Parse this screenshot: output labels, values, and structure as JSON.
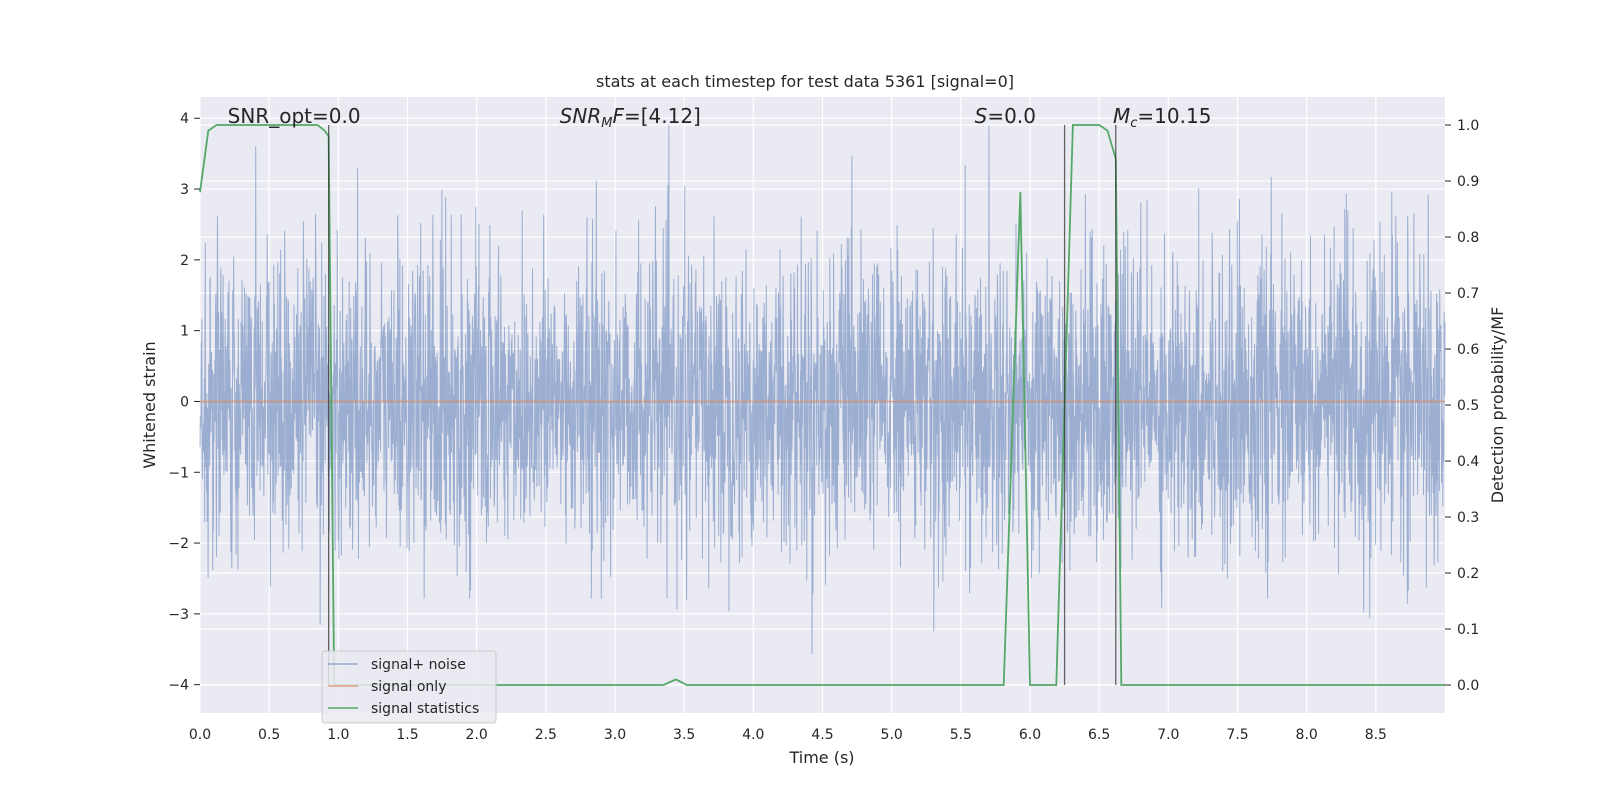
{
  "chart_data": {
    "type": "line",
    "title": "stats at each timestep for test data 5361 [signal=0]",
    "xlabel": "Time (s)",
    "ylabel_left": "Whitened strain",
    "ylabel_right": "Detection probability/MF",
    "xlim": [
      0,
      9.0
    ],
    "ylim_left": [
      -4.4,
      4.3
    ],
    "ylim_right": [
      -0.05,
      1.05
    ],
    "x_ticks": [
      0.0,
      0.5,
      1.0,
      1.5,
      2.0,
      2.5,
      3.0,
      3.5,
      4.0,
      4.5,
      5.0,
      5.5,
      6.0,
      6.5,
      7.0,
      7.5,
      8.0,
      8.5
    ],
    "x_tick_labels": [
      "0.0",
      "0.5",
      "1.0",
      "1.5",
      "2.0",
      "2.5",
      "3.0",
      "3.5",
      "4.0",
      "4.5",
      "5.0",
      "5.5",
      "6.0",
      "6.5",
      "7.0",
      "7.5",
      "8.0",
      "8.5"
    ],
    "y_left_ticks": [
      -4,
      -3,
      -2,
      -1,
      0,
      1,
      2,
      3,
      4
    ],
    "y_left_tick_labels": [
      "−4",
      "−3",
      "−2",
      "−1",
      "0",
      "1",
      "2",
      "3",
      "4"
    ],
    "y_right_ticks": [
      0.0,
      0.1,
      0.2,
      0.3,
      0.4,
      0.5,
      0.6,
      0.7,
      0.8,
      0.9,
      1.0
    ],
    "y_right_tick_labels": [
      "0.0",
      "0.1",
      "0.2",
      "0.3",
      "0.4",
      "0.5",
      "0.6",
      "0.7",
      "0.8",
      "0.9",
      "1.0"
    ],
    "grid": true,
    "legend_position": "lower-left",
    "annotations": [
      {
        "text": "SNR_opt=0.0",
        "x": 0.2
      },
      {
        "text": "SNR_MF=[4.12]",
        "x": 2.6
      },
      {
        "text": "S=0.0",
        "x": 5.6
      },
      {
        "text": "M_c=10.15",
        "x": 6.6
      }
    ],
    "vertical_lines": [
      0.93,
      6.25,
      6.62
    ],
    "series": [
      {
        "name": "signal+ noise",
        "color": "#4c72b0",
        "description": "white noise strain, roughly within ±2.5 with peaks to about ±3.9"
      },
      {
        "name": "signal only",
        "color": "#dd8452",
        "x": [
          0.0,
          9.0
        ],
        "y": [
          0.0,
          0.0
        ]
      },
      {
        "name": "signal statistics",
        "color": "#55a868",
        "axis": "right",
        "x": [
          0.0,
          0.06,
          0.12,
          0.3,
          0.5,
          0.7,
          0.85,
          0.9,
          0.93,
          0.97,
          1.0,
          1.5,
          2.0,
          2.5,
          3.0,
          3.35,
          3.44,
          3.52,
          4.0,
          4.5,
          5.0,
          5.5,
          5.81,
          5.93,
          6.0,
          6.19,
          6.31,
          6.5,
          6.56,
          6.62,
          6.66,
          6.75,
          7.0,
          7.5,
          8.0,
          8.5,
          9.0
        ],
        "y": [
          0.88,
          0.99,
          1.0,
          1.0,
          1.0,
          1.0,
          1.0,
          0.99,
          0.98,
          0.0,
          0.0,
          0.0,
          0.0,
          0.0,
          0.0,
          0.0,
          0.01,
          0.0,
          0.0,
          0.0,
          0.0,
          0.0,
          0.0,
          0.88,
          0.0,
          0.0,
          1.0,
          1.0,
          0.99,
          0.94,
          0.0,
          0.0,
          0.0,
          0.0,
          0.0,
          0.0,
          0.0
        ]
      }
    ]
  }
}
